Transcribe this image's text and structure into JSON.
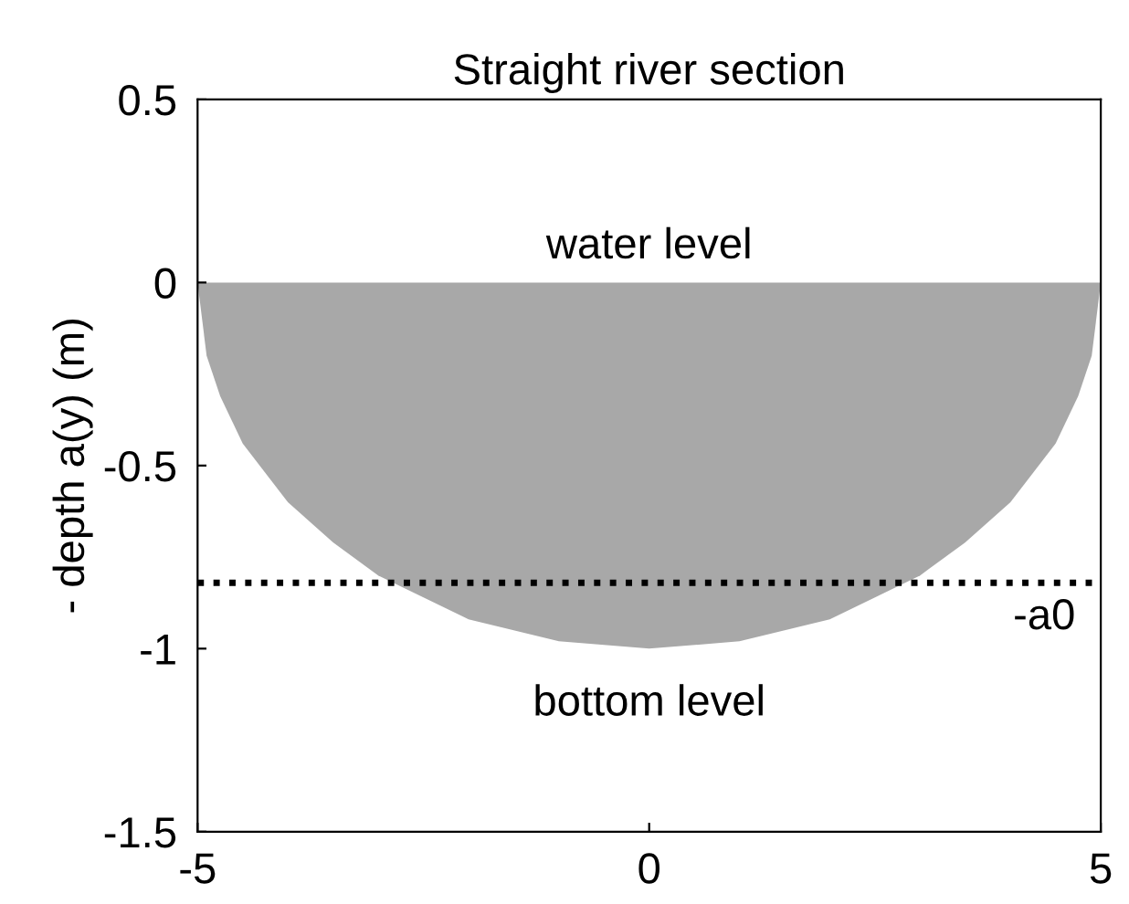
{
  "chart_data": {
    "type": "area",
    "title": "Straight river section",
    "ylabel": "- depth a(y) (m)",
    "x": [
      -5,
      -4.9,
      -4.75,
      -4.5,
      -4,
      -3.5,
      -3,
      -2,
      -1,
      0,
      1,
      2,
      3,
      3.5,
      4,
      4.5,
      4.75,
      4.9,
      5
    ],
    "series": [
      {
        "color": "#a8a8a8",
        "values": [
          0,
          -0.2,
          -0.31,
          -0.44,
          -0.6,
          -0.71,
          -0.8,
          -0.92,
          -0.98,
          -1,
          -0.98,
          -0.92,
          -0.8,
          -0.71,
          -0.6,
          -0.44,
          -0.31,
          -0.2,
          0
        ]
      }
    ],
    "xlim": [
      -5,
      5
    ],
    "xticks": [
      -5,
      0,
      5
    ],
    "ylim": [
      -1.5,
      0.5
    ],
    "yticks": [
      -1.5,
      -1,
      -0.5,
      0,
      0.5
    ],
    "ref_lines": [
      {
        "axis": "y",
        "value": -0.82,
        "label": "-a0",
        "color": "#000000",
        "line_style": "dotted"
      }
    ],
    "annotations": [
      {
        "text": "water level",
        "x": 0,
        "y": 0
      },
      {
        "text": "bottom level",
        "x": 0,
        "y": -1
      }
    ],
    "grid": false
  }
}
